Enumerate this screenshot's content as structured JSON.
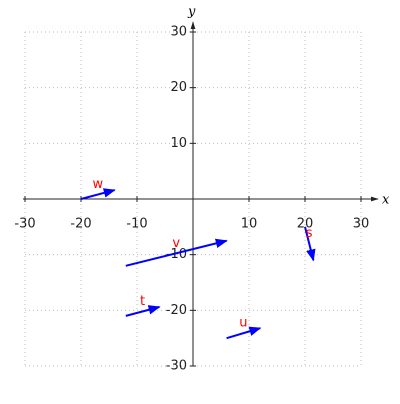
{
  "chart_data": {
    "type": "vector",
    "x_label": "x",
    "y_label": "y",
    "xlim": [
      -30,
      30
    ],
    "ylim": [
      -30,
      30
    ],
    "xticks": [
      -30,
      -20,
      -10,
      10,
      20,
      30
    ],
    "yticks": [
      -30,
      -20,
      -10,
      10,
      20,
      30
    ],
    "grid": true,
    "arrow_color": "#0000ff",
    "label_color": "#ff0000",
    "vectors": [
      {
        "name": "w",
        "x": -20,
        "y": 0,
        "dx": 6,
        "dy": 1.6
      },
      {
        "name": "v",
        "x": -12,
        "y": -12,
        "dx": 18,
        "dy": 4.5
      },
      {
        "name": "t",
        "x": -12,
        "y": -21,
        "dx": 6,
        "dy": 1.6
      },
      {
        "name": "u",
        "x": 6,
        "y": -25,
        "dx": 6,
        "dy": 1.8
      },
      {
        "name": "s",
        "x": 20,
        "y": -5,
        "dx": 1.5,
        "dy": -6
      }
    ]
  }
}
